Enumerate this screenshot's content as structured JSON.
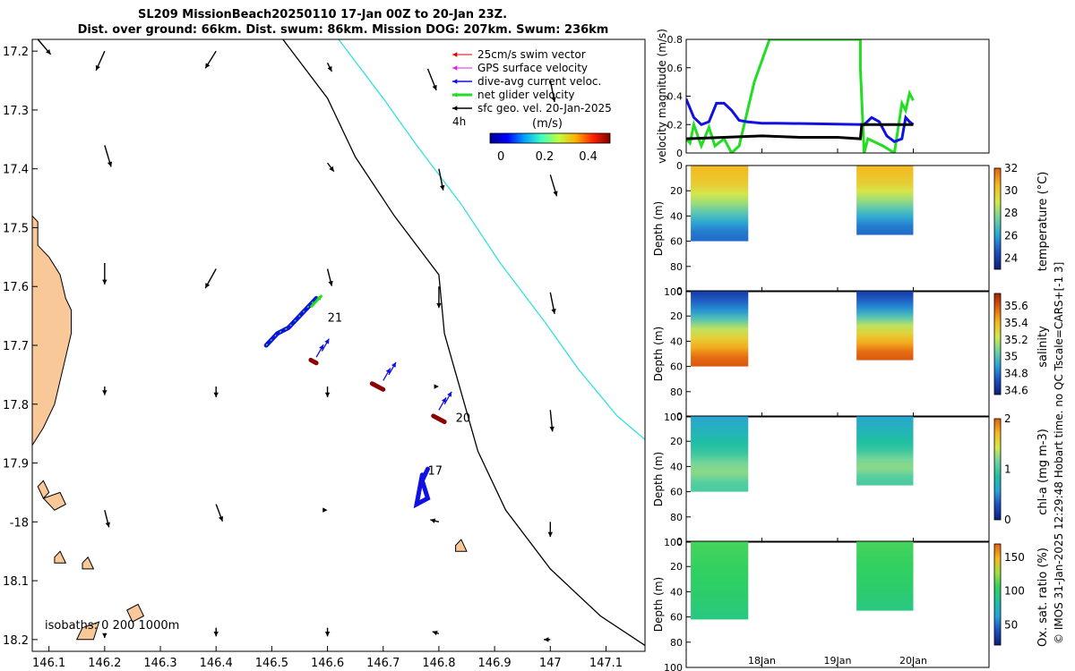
{
  "title": {
    "line1": "SL209 MissionBeach20250110 17-Jan 00Z to 20-Jan 23Z.",
    "line2": "Dist. over ground: 66km. Dist. swum: 86km. Mission DOG: 207km. Swum: 236km"
  },
  "side_note": "© IMOS 31-Jan-2025 12:29:48 Hobart time. no QC Tscale=CARS+[-1 3]",
  "colors": {
    "land": "#f8c898",
    "isobath_200": "#000000",
    "isobath_1000": "#33e0e0",
    "swim_vector": "#e00000",
    "gps_velocity": "#e020e0",
    "dive_avg_current": "#1010e0",
    "net_glider": "#22dd22",
    "sfc_geo": "#000000",
    "track_marker": "#8b0000"
  },
  "chart_data": [
    {
      "id": "map",
      "type": "scatter",
      "xlabel": "",
      "ylabel": "",
      "xlim": [
        146.07,
        147.17
      ],
      "ylim": [
        -18.22,
        -17.18
      ],
      "xticks": [
        146.1,
        146.2,
        146.3,
        146.4,
        146.5,
        146.6,
        146.7,
        146.8,
        146.9,
        147.0,
        147.1
      ],
      "xticklabels": [
        "146.1",
        "146.2",
        "146.3",
        "146.4",
        "146.5",
        "146.6",
        "146.7",
        "146.8",
        "146.9",
        "147",
        "147.1"
      ],
      "yticks": [
        -17.2,
        -17.3,
        -17.4,
        -17.5,
        -17.6,
        -17.7,
        -17.8,
        -17.9,
        -18.0,
        -18.1,
        -18.2
      ],
      "yticklabels": [
        "17.2",
        "17.3",
        "17.4",
        "17.5",
        "17.6",
        "17.7",
        "17.8",
        "17.9",
        "-18",
        "18.1",
        "18.2"
      ],
      "legend": {
        "placement": "top-right",
        "entries": [
          "25cm/s swim vector",
          "GPS surface velocity",
          "dive-avg current veloc.",
          "net glider velocity",
          "sfc geo. vel. 20-Jan-2025"
        ],
        "scale_label": "4h",
        "colorbar_label": "(m/s)",
        "colorbar_ticks": [
          "0",
          "0.2",
          "0.4"
        ],
        "colorbar_range": [
          -0.05,
          0.5
        ]
      },
      "isobath_text": "isobaths: 0   200   1000m",
      "isobath_200": [
        [
          146.52,
          -17.18
        ],
        [
          146.6,
          -17.28
        ],
        [
          146.65,
          -17.38
        ],
        [
          146.72,
          -17.48
        ],
        [
          146.8,
          -17.58
        ],
        [
          146.81,
          -17.68
        ],
        [
          146.84,
          -17.78
        ],
        [
          146.87,
          -17.88
        ],
        [
          146.92,
          -17.98
        ],
        [
          147.0,
          -18.08
        ],
        [
          147.09,
          -18.16
        ],
        [
          147.17,
          -18.21
        ]
      ],
      "isobath_1000": [
        [
          146.62,
          -17.18
        ],
        [
          146.7,
          -17.28
        ],
        [
          146.76,
          -17.36
        ],
        [
          146.84,
          -17.46
        ],
        [
          146.91,
          -17.56
        ],
        [
          146.99,
          -17.66
        ],
        [
          147.05,
          -17.74
        ],
        [
          147.12,
          -17.82
        ],
        [
          147.17,
          -17.86
        ]
      ],
      "land_polygons": [
        [
          [
            146.07,
            -17.48
          ],
          [
            146.08,
            -17.49
          ],
          [
            146.08,
            -17.53
          ],
          [
            146.1,
            -17.55
          ],
          [
            146.12,
            -17.58
          ],
          [
            146.13,
            -17.62
          ],
          [
            146.14,
            -17.64
          ],
          [
            146.14,
            -17.68
          ],
          [
            146.13,
            -17.72
          ],
          [
            146.12,
            -17.76
          ],
          [
            146.11,
            -17.8
          ],
          [
            146.09,
            -17.84
          ],
          [
            146.07,
            -17.87
          ]
        ],
        [
          [
            146.08,
            -17.94
          ],
          [
            146.09,
            -17.93
          ],
          [
            146.1,
            -17.95
          ],
          [
            146.09,
            -17.96
          ]
        ],
        [
          [
            146.09,
            -17.96
          ],
          [
            146.12,
            -17.95
          ],
          [
            146.13,
            -17.97
          ],
          [
            146.11,
            -17.98
          ]
        ],
        [
          [
            146.24,
            -18.15
          ],
          [
            146.26,
            -18.14
          ],
          [
            146.27,
            -18.16
          ],
          [
            146.25,
            -18.17
          ]
        ],
        [
          [
            146.16,
            -18.18
          ],
          [
            146.19,
            -18.17
          ],
          [
            146.18,
            -18.2
          ],
          [
            146.15,
            -18.2
          ]
        ],
        [
          [
            146.16,
            -18.07
          ],
          [
            146.17,
            -18.06
          ],
          [
            146.18,
            -18.08
          ],
          [
            146.16,
            -18.08
          ]
        ],
        [
          [
            146.11,
            -18.06
          ],
          [
            146.12,
            -18.05
          ],
          [
            146.13,
            -18.07
          ],
          [
            146.11,
            -18.07
          ]
        ],
        [
          [
            146.83,
            -18.04
          ],
          [
            146.84,
            -18.03
          ],
          [
            146.85,
            -18.05
          ],
          [
            146.83,
            -18.05
          ]
        ]
      ],
      "glider_track_1": [
        [
          146.49,
          -17.7
        ],
        [
          146.51,
          -17.68
        ],
        [
          146.53,
          -17.67
        ],
        [
          146.55,
          -17.65
        ],
        [
          146.57,
          -17.63
        ],
        [
          146.58,
          -17.62
        ]
      ],
      "glider_track_2": [
        [
          146.78,
          -17.91
        ],
        [
          146.77,
          -17.93
        ],
        [
          146.78,
          -17.96
        ],
        [
          146.76,
          -17.97
        ],
        [
          146.77,
          -17.92
        ]
      ],
      "net_glider_arrow": [
        [
          146.57,
          -17.635
        ],
        [
          146.59,
          -17.615
        ]
      ],
      "track_markers": [
        [
          146.57,
          -17.725
        ],
        [
          146.58,
          -17.73
        ],
        [
          146.68,
          -17.765
        ],
        [
          146.7,
          -17.775
        ],
        [
          146.79,
          -17.82
        ],
        [
          146.81,
          -17.83
        ]
      ],
      "day_labels": [
        {
          "text": "21",
          "x": 146.6,
          "y": -17.66
        },
        {
          "text": "20",
          "x": 146.83,
          "y": -17.83
        },
        {
          "text": "17",
          "x": 146.78,
          "y": -17.92
        }
      ],
      "current_arrows": [
        [
          146.58,
          -17.72,
          0.2
        ],
        [
          146.59,
          -17.71,
          0.2
        ],
        [
          146.7,
          -17.76,
          0.2
        ],
        [
          146.71,
          -17.75,
          0.2
        ],
        [
          146.8,
          -17.81,
          0.2
        ],
        [
          146.81,
          -17.8,
          0.2
        ]
      ],
      "geo_arrows": [
        [
          146.08,
          -17.18,
          0.6,
          -0.7
        ],
        [
          146.2,
          -17.2,
          -0.4,
          -0.9
        ],
        [
          146.4,
          -17.2,
          -0.5,
          -0.8
        ],
        [
          146.6,
          -17.22,
          0.2,
          -0.4
        ],
        [
          146.78,
          -17.23,
          0.4,
          -1
        ],
        [
          147.0,
          -17.25,
          0.2,
          -1
        ],
        [
          146.2,
          -17.36,
          0.3,
          -1
        ],
        [
          146.6,
          -17.39,
          0.3,
          -0.4
        ],
        [
          146.8,
          -17.4,
          0.2,
          -1
        ],
        [
          147.0,
          -17.41,
          0.3,
          -1
        ],
        [
          146.2,
          -17.56,
          0,
          -1
        ],
        [
          146.4,
          -17.57,
          -0.5,
          -0.9
        ],
        [
          146.6,
          -17.57,
          0.2,
          -0.8
        ],
        [
          146.8,
          -17.6,
          0,
          -1
        ],
        [
          147.0,
          -17.61,
          0.2,
          -1
        ],
        [
          146.2,
          -17.77,
          0,
          -0.4
        ],
        [
          146.4,
          -17.77,
          0,
          -0.5
        ],
        [
          146.6,
          -17.77,
          0,
          -0.5
        ],
        [
          146.8,
          -17.77,
          0,
          0
        ],
        [
          147.0,
          -17.81,
          0.1,
          -1
        ],
        [
          146.2,
          -17.98,
          0.2,
          -0.8
        ],
        [
          146.4,
          -17.97,
          0.3,
          -0.8
        ],
        [
          146.6,
          -17.98,
          0,
          0
        ],
        [
          146.8,
          -18.0,
          -0.4,
          0.1
        ],
        [
          147.0,
          -18.0,
          0,
          -0.7
        ],
        [
          146.2,
          -18.19,
          0,
          -0.2
        ],
        [
          146.4,
          -18.18,
          0,
          -0.4
        ],
        [
          146.6,
          -18.18,
          0,
          -0.4
        ],
        [
          146.8,
          -18.19,
          -0.3,
          0.1
        ],
        [
          147.0,
          -18.2,
          -0.3,
          0
        ]
      ]
    },
    {
      "id": "velocity",
      "type": "line",
      "ylabel": "velocity magnitude (m/s)",
      "ylim": [
        0,
        0.8
      ],
      "yticks": [
        0,
        0.2,
        0.4,
        0.6,
        0.8
      ],
      "yticklabels": [
        "0",
        "0.2",
        "0.4",
        "0.6",
        "0.8"
      ],
      "xlim": [
        0,
        4
      ],
      "series": [
        {
          "name": "green",
          "color": "#22dd22",
          "x": [
            0,
            0.05,
            0.1,
            0.2,
            0.3,
            0.38,
            0.5,
            0.6,
            0.7,
            0.9,
            1.1,
            2.3,
            2.3,
            2.35,
            2.4,
            2.6,
            2.75,
            2.85,
            2.9,
            2.95,
            3.0
          ],
          "y": [
            0.1,
            0.07,
            0.2,
            0.05,
            0.18,
            0.05,
            0.1,
            0.0,
            0.05,
            0.5,
            0.8,
            0.8,
            0.6,
            0.0,
            0.1,
            0.05,
            0.0,
            0.35,
            0.3,
            0.42,
            0.37
          ]
        },
        {
          "name": "blue",
          "color": "#1010e0",
          "x": [
            0,
            0.1,
            0.2,
            0.3,
            0.4,
            0.5,
            0.6,
            0.7,
            0.8,
            1.0,
            1.2,
            2.35,
            2.45,
            2.55,
            2.65,
            2.75,
            2.85,
            2.9,
            2.95,
            3.0
          ],
          "y": [
            0.38,
            0.25,
            0.2,
            0.22,
            0.35,
            0.35,
            0.3,
            0.23,
            0.22,
            0.21,
            0.21,
            0.2,
            0.25,
            0.22,
            0.12,
            0.08,
            0.1,
            0.25,
            0.22,
            0.2
          ]
        },
        {
          "name": "black",
          "color": "#000000",
          "x": [
            0,
            0.5,
            1.0,
            1.5,
            2.0,
            2.3,
            2.32,
            2.5,
            3.0
          ],
          "y": [
            0.1,
            0.11,
            0.12,
            0.11,
            0.11,
            0.1,
            0.2,
            0.2,
            0.2
          ]
        }
      ]
    },
    {
      "id": "temperature",
      "type": "heatmap",
      "ylabel": "Depth (m)",
      "colorbar_label": "temperature (°C)",
      "clim": [
        23,
        32
      ],
      "ticks": [
        "24",
        "26",
        "28",
        "30",
        "32"
      ],
      "tick_values": [
        24,
        26,
        28,
        30,
        32
      ],
      "palette": [
        "#08207a",
        "#1d4dc0",
        "#29a3d8",
        "#6dd3a0",
        "#d4e84d",
        "#f5b820",
        "#e26010"
      ],
      "ylim": [
        0,
        100
      ],
      "yticks": [
        "0",
        "20",
        "40",
        "60",
        "80",
        "100"
      ],
      "blocks": [
        {
          "x0": 0.06,
          "x1": 0.82,
          "bottom": 60
        },
        {
          "x0": 2.25,
          "x1": 3.0,
          "bottom": 55
        }
      ],
      "profile": [
        {
          "depth": 0,
          "value": 30.5
        },
        {
          "depth": 15,
          "value": 30
        },
        {
          "depth": 30,
          "value": 28.5
        },
        {
          "depth": 45,
          "value": 26.5
        },
        {
          "depth": 60,
          "value": 25
        }
      ]
    },
    {
      "id": "salinity",
      "type": "heatmap",
      "ylabel": "Depth (m)",
      "colorbar_label": "salinity",
      "clim": [
        34.55,
        35.75
      ],
      "ticks": [
        "34.6",
        "34.8",
        "35",
        "35.2",
        "35.4",
        "35.6"
      ],
      "tick_values": [
        34.6,
        34.8,
        35,
        35.2,
        35.4,
        35.6
      ],
      "palette": [
        "#08207a",
        "#1d4dc0",
        "#29a3d8",
        "#6dd3a0",
        "#d4e84d",
        "#f5b820",
        "#e26010",
        "#a02008"
      ],
      "ylim": [
        0,
        100
      ],
      "yticks": [
        "0",
        "20",
        "40",
        "60",
        "80",
        "100"
      ],
      "blocks": [
        {
          "x0": 0.06,
          "x1": 0.82,
          "bottom": 60
        },
        {
          "x0": 2.25,
          "x1": 3.0,
          "bottom": 55
        }
      ],
      "profile": [
        {
          "depth": 0,
          "value": 34.65
        },
        {
          "depth": 20,
          "value": 34.9
        },
        {
          "depth": 35,
          "value": 35.25
        },
        {
          "depth": 50,
          "value": 35.45
        },
        {
          "depth": 60,
          "value": 35.6
        }
      ]
    },
    {
      "id": "chla",
      "type": "heatmap",
      "ylabel": "Depth (m)",
      "colorbar_label": "chl-a (mg m-3)",
      "clim": [
        0,
        2
      ],
      "ticks": [
        "0",
        "1",
        "2"
      ],
      "tick_values": [
        0,
        1,
        2
      ],
      "palette": [
        "#08207a",
        "#1d4dc0",
        "#29a3d8",
        "#20c0a0",
        "#6dd3a0",
        "#d4e84d",
        "#f5b820",
        "#e26010"
      ],
      "ylim": [
        0,
        100
      ],
      "yticks": [
        "0",
        "20",
        "40",
        "60",
        "80",
        "100"
      ],
      "blocks": [
        {
          "x0": 0.06,
          "x1": 0.82,
          "bottom": 60
        },
        {
          "x0": 2.25,
          "x1": 3.0,
          "bottom": 55
        }
      ],
      "profile": [
        {
          "depth": 0,
          "value": 0.6
        },
        {
          "depth": 20,
          "value": 0.8
        },
        {
          "depth": 35,
          "value": 1.0
        },
        {
          "depth": 45,
          "value": 1.3
        },
        {
          "depth": 60,
          "value": 1.0
        }
      ]
    },
    {
      "id": "oxygen",
      "type": "heatmap",
      "ylabel": "Depth (m)",
      "colorbar_label": "Ox. sat. ratio (%)",
      "clim": [
        20,
        170
      ],
      "ticks": [
        "50",
        "100",
        "150"
      ],
      "tick_values": [
        50,
        100,
        150
      ],
      "palette": [
        "#08207a",
        "#1d4dc0",
        "#29a3d8",
        "#20c0a0",
        "#30d060",
        "#9fe040",
        "#f5b820",
        "#e26010"
      ],
      "ylim": [
        0,
        100
      ],
      "yticks": [
        "0",
        "20",
        "40",
        "60",
        "80",
        "100"
      ],
      "blocks": [
        {
          "x0": 0.06,
          "x1": 0.82,
          "bottom": 62
        },
        {
          "x0": 2.25,
          "x1": 3.0,
          "bottom": 55
        }
      ],
      "profile": [
        {
          "depth": 0,
          "value": 110
        },
        {
          "depth": 30,
          "value": 105
        },
        {
          "depth": 50,
          "value": 100
        },
        {
          "depth": 62,
          "value": 95
        }
      ]
    }
  ],
  "time_axis": {
    "xlim": [
      0,
      4
    ],
    "ticks": [
      {
        "x": 1,
        "label": "18Jan"
      },
      {
        "x": 2,
        "label": "19Jan"
      },
      {
        "x": 3,
        "label": "20Jan"
      }
    ]
  }
}
